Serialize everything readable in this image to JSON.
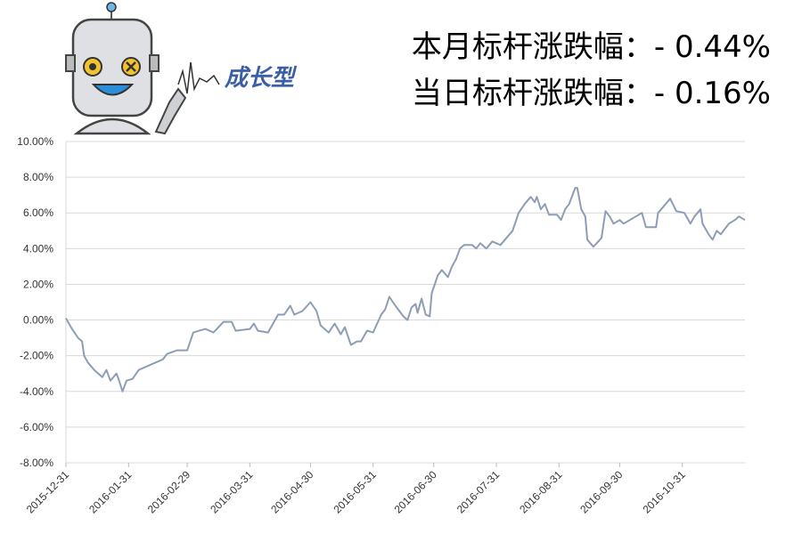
{
  "chart_data": {
    "type": "line",
    "logo": "成长型",
    "annotations": [
      "本月标杆涨跌幅：- 0.44%",
      "当日标杆涨跌幅：- 0.16%"
    ],
    "x": [
      "2015-12-31",
      "2016-01-03",
      "2016-01-06",
      "2016-01-08",
      "2016-01-09",
      "2016-01-11",
      "2016-01-14",
      "2016-01-16",
      "2016-01-18",
      "2016-01-20",
      "2016-01-22",
      "2016-01-25",
      "2016-01-26",
      "2016-01-28",
      "2016-01-30",
      "2016-02-02",
      "2016-02-05",
      "2016-02-11",
      "2016-02-17",
      "2016-02-19",
      "2016-02-24",
      "2016-02-29",
      "2016-03-03",
      "2016-03-09",
      "2016-03-13",
      "2016-03-18",
      "2016-03-22",
      "2016-03-24",
      "2016-03-31",
      "2016-04-02",
      "2016-04-04",
      "2016-04-09",
      "2016-04-14",
      "2016-04-17",
      "2016-04-20",
      "2016-04-22",
      "2016-04-26",
      "2016-04-30",
      "2016-05-03",
      "2016-05-05",
      "2016-05-09",
      "2016-05-12",
      "2016-05-15",
      "2016-05-17",
      "2016-05-20",
      "2016-05-23",
      "2016-05-25",
      "2016-05-28",
      "2016-05-31",
      "2016-06-04",
      "2016-06-06",
      "2016-06-08",
      "2016-06-11",
      "2016-06-15",
      "2016-06-17",
      "2016-06-19",
      "2016-06-21",
      "2016-06-22",
      "2016-06-24",
      "2016-06-26",
      "2016-06-28",
      "2016-06-29",
      "2016-07-02",
      "2016-07-04",
      "2016-07-07",
      "2016-07-09",
      "2016-07-11",
      "2016-07-13",
      "2016-07-15",
      "2016-07-19",
      "2016-07-21",
      "2016-07-23",
      "2016-07-26",
      "2016-07-29",
      "2016-08-02",
      "2016-08-05",
      "2016-08-08",
      "2016-08-11",
      "2016-08-14",
      "2016-08-17",
      "2016-08-19",
      "2016-08-20",
      "2016-08-22",
      "2016-08-24",
      "2016-08-26",
      "2016-08-30",
      "2016-09-01",
      "2016-09-03",
      "2016-09-05",
      "2016-09-08",
      "2016-09-09",
      "2016-09-11",
      "2016-09-13",
      "2016-09-14",
      "2016-09-17",
      "2016-09-21",
      "2016-09-23",
      "2016-09-25",
      "2016-09-27",
      "2016-09-30",
      "2016-10-02",
      "2016-10-11",
      "2016-10-13",
      "2016-10-18",
      "2016-10-19",
      "2016-10-25",
      "2016-10-28",
      "2016-11-01",
      "2016-11-04",
      "2016-11-06",
      "2016-11-09",
      "2016-11-10",
      "2016-11-13",
      "2016-11-15",
      "2016-11-17",
      "2016-11-19",
      "2016-11-23",
      "2016-11-26",
      "2016-11-28",
      "2016-12-01"
    ],
    "values": [
      0.1,
      -0.5,
      -1.0,
      -1.2,
      -2.0,
      -2.4,
      -2.8,
      -3.0,
      -3.2,
      -2.8,
      -3.4,
      -3.0,
      -3.3,
      -4.0,
      -3.4,
      -3.3,
      -2.8,
      -2.5,
      -2.2,
      -1.9,
      -1.7,
      -1.7,
      -0.7,
      -0.5,
      -0.7,
      -0.1,
      -0.1,
      -0.6,
      -0.5,
      -0.2,
      -0.6,
      -0.7,
      0.3,
      0.3,
      0.8,
      0.3,
      0.5,
      1.0,
      0.5,
      -0.3,
      -0.7,
      -0.2,
      -0.8,
      -0.4,
      -1.4,
      -1.2,
      -1.2,
      -0.6,
      -0.7,
      0.3,
      0.6,
      1.3,
      0.8,
      0.2,
      0.0,
      0.7,
      0.9,
      0.4,
      1.2,
      0.3,
      0.2,
      1.5,
      2.5,
      2.8,
      2.4,
      3.0,
      3.4,
      4.0,
      4.2,
      4.2,
      4.0,
      4.3,
      4.0,
      4.4,
      4.2,
      4.6,
      5.0,
      6.0,
      6.5,
      6.9,
      6.6,
      6.9,
      6.2,
      6.5,
      5.9,
      5.9,
      5.6,
      6.2,
      6.5,
      7.4,
      7.4,
      6.2,
      5.8,
      4.5,
      4.1,
      4.6,
      6.1,
      5.8,
      5.4,
      5.6,
      5.4,
      6.0,
      5.2,
      5.2,
      6.0,
      6.8,
      6.1,
      6.0,
      5.4,
      5.8,
      6.2,
      5.4,
      4.8,
      4.5,
      5.0,
      4.8,
      5.4,
      5.6,
      5.8,
      5.6
    ],
    "color": "#8c9db5",
    "xlim": [
      "2015-12-31",
      "2016-12-01"
    ],
    "xticks": [
      "2015-12-31",
      "2016-01-31",
      "2016-02-29",
      "2016-03-31",
      "2016-04-30",
      "2016-05-31",
      "2016-06-30",
      "2016-07-31",
      "2016-08-31",
      "2016-09-30",
      "2016-10-31"
    ],
    "ylim": [
      -8,
      10
    ],
    "yticks": [
      {
        "value": -8,
        "label": "-8.00%"
      },
      {
        "value": -6,
        "label": "-6.00%"
      },
      {
        "value": -4,
        "label": "-4.00%"
      },
      {
        "value": -2,
        "label": "-2.00%"
      },
      {
        "value": 0,
        "label": "0.00%"
      },
      {
        "value": 2,
        "label": "2.00%"
      },
      {
        "value": 4,
        "label": "4.00%"
      },
      {
        "value": 6,
        "label": "6.00%"
      },
      {
        "value": 8,
        "label": "8.00%"
      },
      {
        "value": 10,
        "label": "10.00%"
      }
    ],
    "grid": true
  }
}
